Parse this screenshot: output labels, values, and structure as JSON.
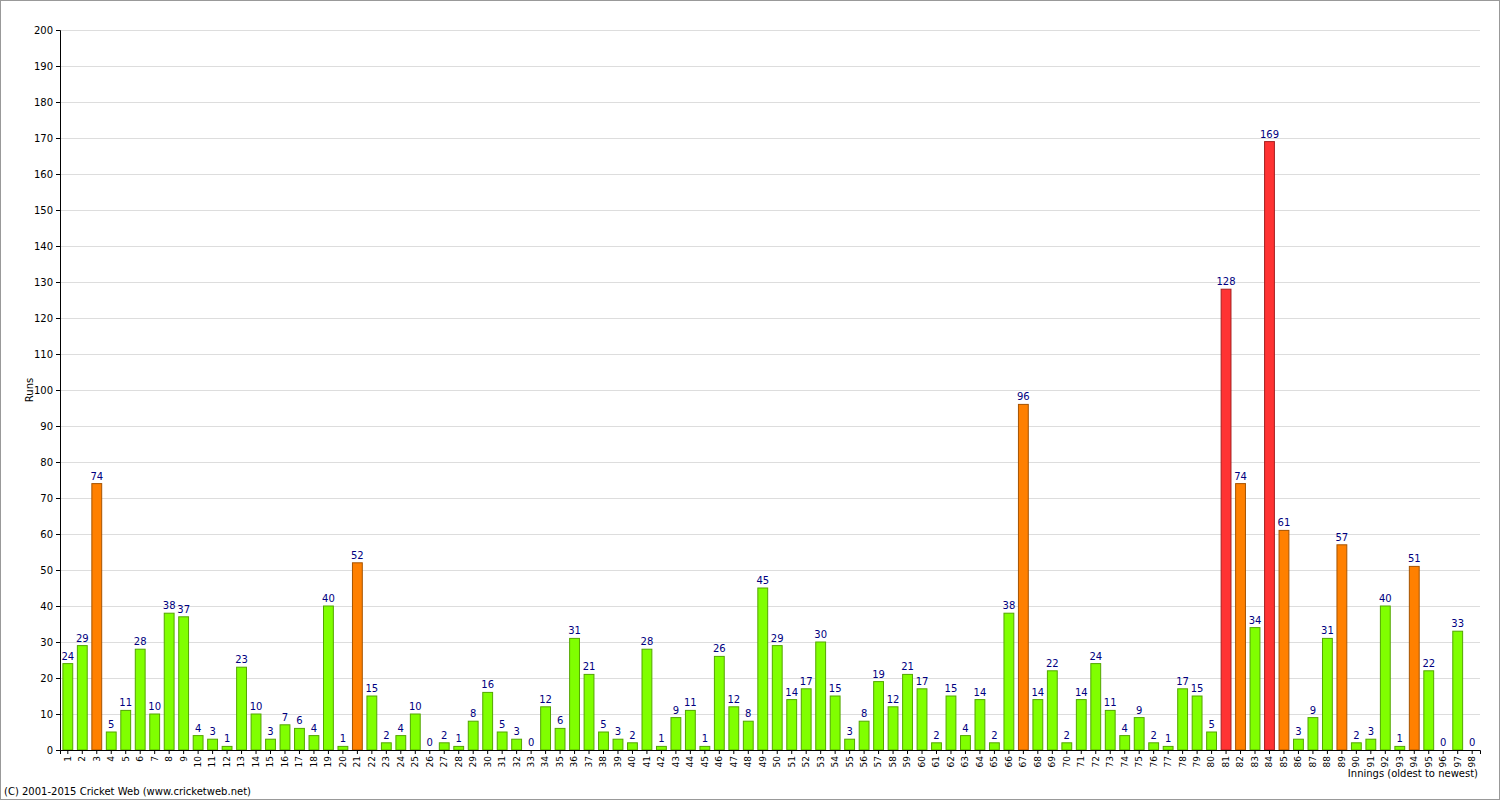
{
  "chart_data": {
    "type": "bar",
    "x_label": "Innings (oldest to newest)",
    "y_label": "Runs",
    "annotation": "(C) 2001-2015 Cricket Web (www.cricketweb.net)",
    "categories": [
      "1",
      "2",
      "3",
      "4",
      "5",
      "6",
      "7",
      "8",
      "9",
      "10",
      "11",
      "12",
      "13",
      "14",
      "15",
      "16",
      "17",
      "18",
      "19",
      "20",
      "21",
      "22",
      "23",
      "24",
      "25",
      "26",
      "27",
      "28",
      "29",
      "30",
      "31",
      "32",
      "33",
      "34",
      "35",
      "36",
      "37",
      "38",
      "39",
      "40",
      "41",
      "42",
      "43",
      "44",
      "45",
      "46",
      "47",
      "48",
      "49",
      "50",
      "51",
      "52",
      "53",
      "54",
      "55",
      "56",
      "57",
      "58",
      "59",
      "60",
      "61",
      "62",
      "63",
      "64",
      "65",
      "66",
      "67",
      "68",
      "69",
      "70",
      "71",
      "72",
      "73",
      "74",
      "75",
      "76",
      "77",
      "78",
      "79",
      "80",
      "81",
      "82",
      "83",
      "84",
      "85",
      "86",
      "87",
      "88",
      "89",
      "90",
      "91",
      "92",
      "93",
      "94",
      "95",
      "96",
      "97",
      "98"
    ],
    "values": [
      24,
      29,
      74,
      5,
      11,
      28,
      10,
      38,
      37,
      4,
      3,
      1,
      23,
      10,
      3,
      7,
      6,
      4,
      40,
      1,
      52,
      15,
      2,
      4,
      10,
      0,
      2,
      1,
      8,
      16,
      5,
      3,
      0,
      12,
      6,
      31,
      21,
      5,
      3,
      2,
      28,
      1,
      9,
      11,
      1,
      26,
      12,
      8,
      45,
      29,
      14,
      17,
      30,
      15,
      3,
      8,
      19,
      12,
      21,
      17,
      2,
      15,
      4,
      14,
      2,
      38,
      96,
      14,
      22,
      2,
      14,
      24,
      11,
      4,
      9,
      2,
      1,
      17,
      15,
      5,
      128,
      74,
      34,
      169,
      61,
      3,
      9,
      31,
      57,
      2,
      3,
      40,
      1,
      51,
      22,
      0,
      33,
      0
    ],
    "colors": [
      "#80ff00",
      "#80ff00",
      "#ff8000",
      "#80ff00",
      "#80ff00",
      "#80ff00",
      "#80ff00",
      "#80ff00",
      "#80ff00",
      "#80ff00",
      "#80ff00",
      "#80ff00",
      "#80ff00",
      "#80ff00",
      "#80ff00",
      "#80ff00",
      "#80ff00",
      "#80ff00",
      "#80ff00",
      "#80ff00",
      "#ff8000",
      "#80ff00",
      "#80ff00",
      "#80ff00",
      "#80ff00",
      "#80ff00",
      "#80ff00",
      "#80ff00",
      "#80ff00",
      "#80ff00",
      "#80ff00",
      "#80ff00",
      "#80ff00",
      "#80ff00",
      "#80ff00",
      "#80ff00",
      "#80ff00",
      "#80ff00",
      "#80ff00",
      "#80ff00",
      "#80ff00",
      "#80ff00",
      "#80ff00",
      "#80ff00",
      "#80ff00",
      "#80ff00",
      "#80ff00",
      "#80ff00",
      "#80ff00",
      "#80ff00",
      "#80ff00",
      "#80ff00",
      "#80ff00",
      "#80ff00",
      "#80ff00",
      "#80ff00",
      "#80ff00",
      "#80ff00",
      "#80ff00",
      "#80ff00",
      "#80ff00",
      "#80ff00",
      "#80ff00",
      "#80ff00",
      "#80ff00",
      "#80ff00",
      "#ff8000",
      "#80ff00",
      "#80ff00",
      "#80ff00",
      "#80ff00",
      "#80ff00",
      "#80ff00",
      "#80ff00",
      "#80ff00",
      "#80ff00",
      "#80ff00",
      "#80ff00",
      "#80ff00",
      "#80ff00",
      "#ff3333",
      "#ff8000",
      "#80ff00",
      "#ff3333",
      "#ff8000",
      "#80ff00",
      "#80ff00",
      "#80ff00",
      "#ff8000",
      "#80ff00",
      "#80ff00",
      "#80ff00",
      "#80ff00",
      "#ff8000",
      "#80ff00",
      "#80ff00",
      "#80ff00",
      "#80ff00"
    ],
    "ylim": [
      0,
      200
    ],
    "yticks": [
      0,
      10,
      20,
      30,
      40,
      50,
      60,
      70,
      80,
      90,
      100,
      110,
      120,
      130,
      140,
      150,
      160,
      170,
      180,
      190,
      200
    ],
    "grid": true,
    "data_labels": true
  }
}
